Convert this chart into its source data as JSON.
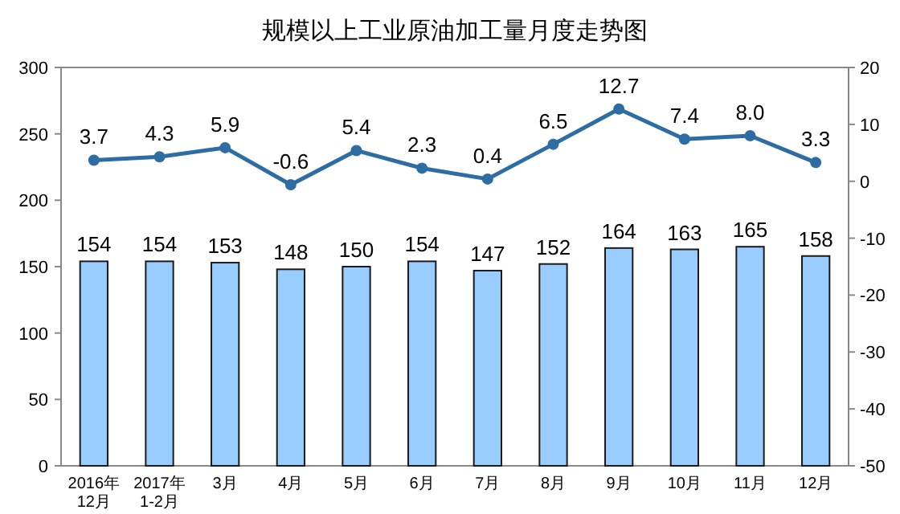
{
  "chart_data": {
    "type": "bar",
    "title": "规模以上工业原油加工量月度走势图",
    "categories": [
      "2016年\n12月",
      "2017年\n1-2月",
      "3月",
      "4月",
      "5月",
      "6月",
      "7月",
      "8月",
      "9月",
      "10月",
      "11月",
      "12月"
    ],
    "series": [
      {
        "color": "#99ccff",
        "values": [
          154,
          154,
          153,
          148,
          150,
          154,
          147,
          152,
          164,
          163,
          165,
          158
        ]
      },
      {
        "type": "line",
        "axis": "y2",
        "color": "#2e6da4",
        "marker": "circle",
        "values": [
          3.7,
          4.3,
          5.9,
          -0.6,
          5.4,
          2.3,
          0.4,
          6.5,
          12.7,
          7.4,
          8.0,
          3.3
        ],
        "value_labels": [
          "3.7",
          "4.3",
          "5.9",
          "-0.6",
          "5.4",
          "2.3",
          "0.4",
          "6.5",
          "12.7",
          "7.4",
          "8.0",
          "3.3"
        ]
      }
    ],
    "data_labels": true,
    "ylim": [
      0,
      300
    ],
    "yticks": [
      0,
      50,
      100,
      150,
      200,
      250,
      300
    ],
    "y2lim": [
      -50,
      20
    ],
    "y2ticks": [
      -50,
      -40,
      -30,
      -20,
      -10,
      0,
      10,
      20
    ],
    "grid": false
  }
}
